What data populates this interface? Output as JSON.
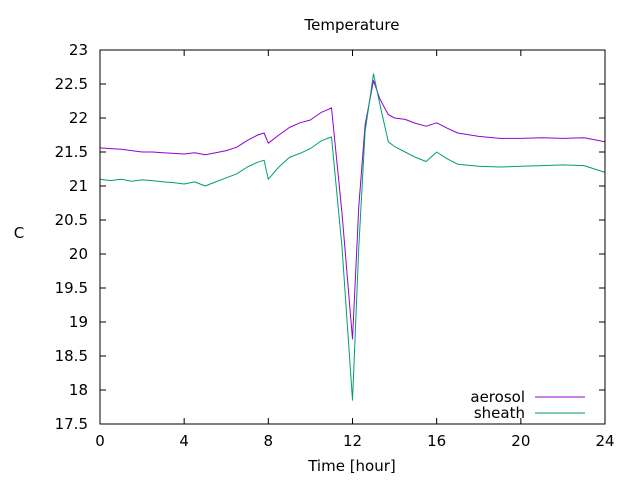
{
  "chart_data": {
    "type": "line",
    "title": "Temperature",
    "xlabel": "Time [hour]",
    "ylabel": "C",
    "xlim": [
      0,
      24
    ],
    "ylim": [
      17.5,
      23
    ],
    "xticks": [
      "0",
      "4",
      "8",
      "12",
      "16",
      "20",
      "24"
    ],
    "yticks": [
      "17.5",
      "18",
      "18.5",
      "19",
      "19.5",
      "20",
      "20.5",
      "21",
      "21.5",
      "22",
      "22.5",
      "23"
    ],
    "grid": false,
    "legend_position": "bottom-right",
    "series": [
      {
        "name": "aerosol",
        "color": "#9400d3",
        "x": [
          0,
          0.5,
          1,
          1.5,
          2,
          2.5,
          3,
          3.5,
          4,
          4.5,
          5,
          5.5,
          6,
          6.5,
          7,
          7.5,
          7.8,
          8,
          8.5,
          9,
          9.5,
          10,
          10.5,
          10.8,
          11,
          11.5,
          12,
          12.3,
          12.6,
          13,
          13.3,
          13.7,
          14,
          14.5,
          15,
          15.5,
          16,
          16.5,
          17,
          18,
          19,
          20,
          21,
          22,
          23,
          24
        ],
        "y": [
          21.56,
          21.55,
          21.54,
          21.52,
          21.5,
          21.5,
          21.49,
          21.48,
          21.47,
          21.49,
          21.46,
          21.49,
          21.52,
          21.57,
          21.67,
          21.75,
          21.78,
          21.63,
          21.75,
          21.86,
          21.93,
          21.97,
          22.08,
          22.12,
          22.15,
          20.6,
          18.75,
          20.7,
          21.9,
          22.55,
          22.28,
          22.05,
          22.0,
          21.98,
          21.92,
          21.88,
          21.93,
          21.85,
          21.78,
          21.73,
          21.7,
          21.7,
          21.71,
          21.7,
          21.71,
          21.65
        ]
      },
      {
        "name": "sheath",
        "color": "#009e73",
        "x": [
          0,
          0.5,
          1,
          1.5,
          2,
          2.5,
          3,
          3.5,
          4,
          4.5,
          5,
          5.5,
          6,
          6.5,
          7,
          7.5,
          7.8,
          8,
          8.5,
          9,
          9.5,
          10,
          10.5,
          10.8,
          11,
          11.5,
          12,
          12.3,
          12.6,
          13,
          13.3,
          13.7,
          14,
          14.5,
          15,
          15.5,
          16,
          16.5,
          17,
          18,
          19,
          20,
          21,
          22,
          23,
          24
        ],
        "y": [
          21.1,
          21.08,
          21.1,
          21.07,
          21.09,
          21.08,
          21.06,
          21.05,
          21.03,
          21.06,
          21.0,
          21.06,
          21.12,
          21.18,
          21.28,
          21.35,
          21.38,
          21.1,
          21.28,
          21.42,
          21.48,
          21.55,
          21.66,
          21.7,
          21.72,
          20.1,
          17.85,
          20.1,
          21.8,
          22.65,
          22.2,
          21.65,
          21.58,
          21.5,
          21.42,
          21.36,
          21.5,
          21.4,
          21.32,
          21.29,
          21.28,
          21.29,
          21.3,
          21.31,
          21.3,
          21.2
        ]
      }
    ]
  }
}
